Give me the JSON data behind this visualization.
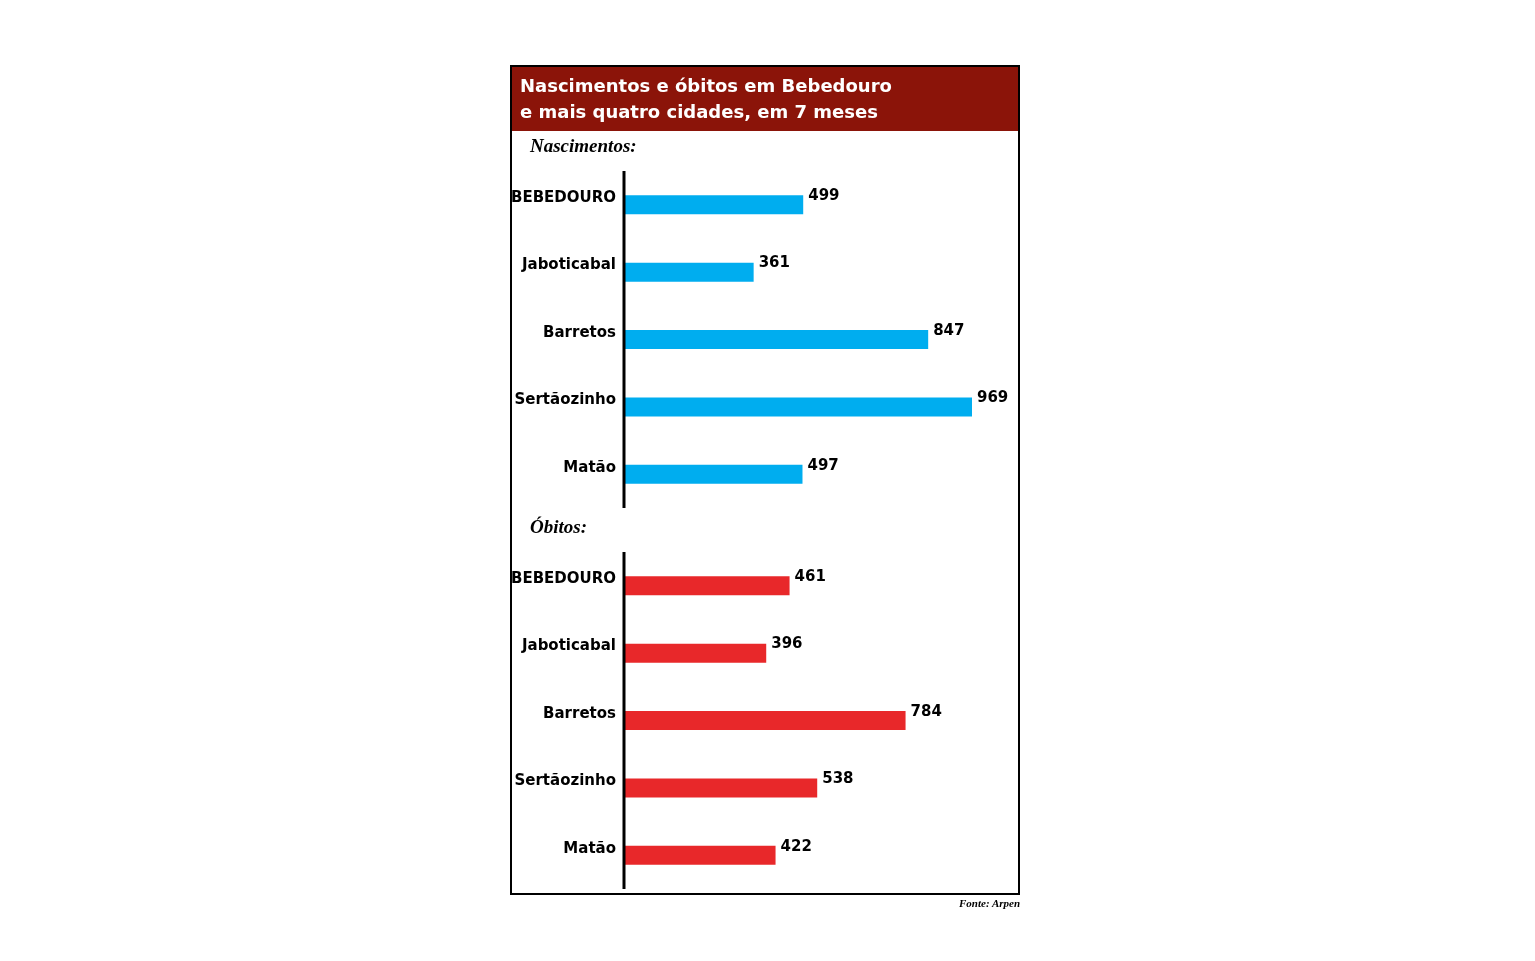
{
  "chart_data": [
    {
      "type": "bar",
      "orientation": "horizontal",
      "title": "Nascimentos e óbitos em Bebedouro\ne mais quatro cidades, em 7 meses",
      "subtitle": "Nascimentos:",
      "categories": [
        "BEBEDOURO",
        "Jaboticabal",
        "Barretos",
        "Sertãozinho",
        "Matão"
      ],
      "values": [
        499,
        361,
        847,
        969,
        497
      ],
      "color": "#00adef",
      "data_labels": true,
      "grid": false,
      "legend": false
    },
    {
      "type": "bar",
      "orientation": "horizontal",
      "subtitle": "Óbitos:",
      "categories": [
        "BEBEDOURO",
        "Jaboticabal",
        "Barretos",
        "Sertãozinho",
        "Matão"
      ],
      "values": [
        461,
        396,
        784,
        538,
        422
      ],
      "color": "#e8282a",
      "data_labels": true,
      "grid": false,
      "legend": false,
      "annotations": [
        "Fonte: Arpen"
      ]
    }
  ]
}
